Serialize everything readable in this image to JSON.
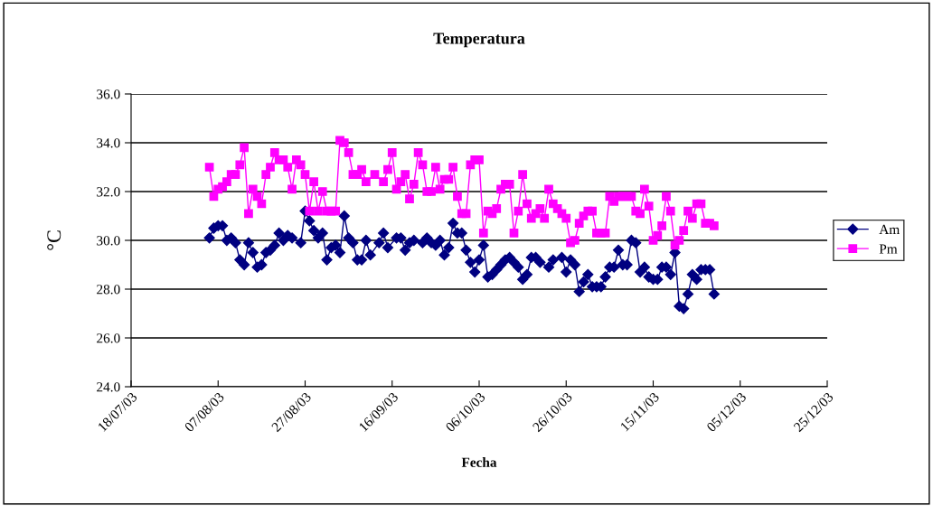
{
  "chart_data": {
    "type": "line",
    "title": "Temperatura",
    "xlabel": "Fecha",
    "ylabel": "°C",
    "xlim": [
      "2003-07-18",
      "2003-12-25"
    ],
    "xticks": [
      {
        "value": "2003-07-18",
        "label": "18/07/03"
      },
      {
        "value": "2003-08-07",
        "label": "07/08/03"
      },
      {
        "value": "2003-08-27",
        "label": "27/08/03"
      },
      {
        "value": "2003-09-16",
        "label": "16/09/03"
      },
      {
        "value": "2003-10-06",
        "label": "06/10/03"
      },
      {
        "value": "2003-10-26",
        "label": "26/10/03"
      },
      {
        "value": "2003-11-15",
        "label": "15/11/03"
      },
      {
        "value": "2003-12-05",
        "label": "05/12/03"
      },
      {
        "value": "2003-12-25",
        "label": "25/12/03"
      }
    ],
    "ylim": [
      24,
      36
    ],
    "yticks": [
      {
        "value": 24,
        "label": "24.0"
      },
      {
        "value": 26,
        "label": "26.0"
      },
      {
        "value": 28,
        "label": "28.0"
      },
      {
        "value": 30,
        "label": "30.0"
      },
      {
        "value": 32,
        "label": "32.0"
      },
      {
        "value": 34,
        "label": "34.0"
      },
      {
        "value": 36,
        "label": "36.0"
      }
    ],
    "grid": "y",
    "legend": "right",
    "series": [
      {
        "name": "Am",
        "color": "#000080",
        "marker": "diamond",
        "x": [
          "2003-08-05",
          "2003-08-06",
          "2003-08-07",
          "2003-08-08",
          "2003-08-09",
          "2003-08-10",
          "2003-08-11",
          "2003-08-12",
          "2003-08-13",
          "2003-08-14",
          "2003-08-15",
          "2003-08-16",
          "2003-08-17",
          "2003-08-18",
          "2003-08-19",
          "2003-08-20",
          "2003-08-21",
          "2003-08-22",
          "2003-08-23",
          "2003-08-24",
          "2003-08-26",
          "2003-08-27",
          "2003-08-28",
          "2003-08-29",
          "2003-08-30",
          "2003-08-31",
          "2003-09-01",
          "2003-09-02",
          "2003-09-03",
          "2003-09-04",
          "2003-09-05",
          "2003-09-06",
          "2003-09-07",
          "2003-09-08",
          "2003-09-09",
          "2003-09-10",
          "2003-09-11",
          "2003-09-13",
          "2003-09-14",
          "2003-09-15",
          "2003-09-17",
          "2003-09-18",
          "2003-09-19",
          "2003-09-20",
          "2003-09-21",
          "2003-09-23",
          "2003-09-24",
          "2003-09-25",
          "2003-09-26",
          "2003-09-27",
          "2003-09-28",
          "2003-09-29",
          "2003-09-30",
          "2003-10-01",
          "2003-10-02",
          "2003-10-03",
          "2003-10-04",
          "2003-10-05",
          "2003-10-06",
          "2003-10-07",
          "2003-10-08",
          "2003-10-09",
          "2003-10-10",
          "2003-10-11",
          "2003-10-12",
          "2003-10-13",
          "2003-10-14",
          "2003-10-15",
          "2003-10-16",
          "2003-10-17",
          "2003-10-18",
          "2003-10-19",
          "2003-10-20",
          "2003-10-22",
          "2003-10-23",
          "2003-10-25",
          "2003-10-26",
          "2003-10-27",
          "2003-10-28",
          "2003-10-29",
          "2003-10-30",
          "2003-10-31",
          "2003-11-01",
          "2003-11-02",
          "2003-11-03",
          "2003-11-04",
          "2003-11-05",
          "2003-11-06",
          "2003-11-07",
          "2003-11-08",
          "2003-11-09",
          "2003-11-10",
          "2003-11-11",
          "2003-11-12",
          "2003-11-13",
          "2003-11-14",
          "2003-11-15",
          "2003-11-16",
          "2003-11-17",
          "2003-11-18",
          "2003-11-19",
          "2003-11-20",
          "2003-11-21",
          "2003-11-22",
          "2003-11-23",
          "2003-11-24",
          "2003-11-25",
          "2003-11-26",
          "2003-11-27",
          "2003-11-28",
          "2003-11-29"
        ],
        "values": [
          30.1,
          30.5,
          30.6,
          30.6,
          30.0,
          30.1,
          29.9,
          29.2,
          29.0,
          29.9,
          29.5,
          28.9,
          29.0,
          29.5,
          29.6,
          29.8,
          30.3,
          30.0,
          30.2,
          30.1,
          29.9,
          31.2,
          30.8,
          30.4,
          30.1,
          30.3,
          29.2,
          29.7,
          29.8,
          29.5,
          31.0,
          30.1,
          29.9,
          29.2,
          29.2,
          30.0,
          29.4,
          29.9,
          30.3,
          29.7,
          30.1,
          30.1,
          29.6,
          29.9,
          30.0,
          29.9,
          30.1,
          29.9,
          29.8,
          30.0,
          29.4,
          29.7,
          30.7,
          30.3,
          30.3,
          29.6,
          29.1,
          28.7,
          29.2,
          29.8,
          28.5,
          28.6,
          28.8,
          29.0,
          29.2,
          29.3,
          29.1,
          28.9,
          28.4,
          28.6,
          29.3,
          29.3,
          29.1,
          28.9,
          29.2,
          29.3,
          28.7,
          29.2,
          29.0,
          27.9,
          28.3,
          28.6,
          28.1,
          28.1,
          28.1,
          28.5,
          28.9,
          28.9,
          29.6,
          29.0,
          29.0,
          30.0,
          29.9,
          28.7,
          28.9,
          28.5,
          28.4,
          28.4,
          28.9,
          28.9,
          28.6,
          29.5,
          27.3,
          27.2,
          27.8,
          28.6,
          28.4,
          28.8,
          28.8,
          28.8,
          27.8
        ]
      },
      {
        "name": "Pm",
        "color": "#ff00ff",
        "marker": "square",
        "x": [
          "2003-08-05",
          "2003-08-06",
          "2003-08-07",
          "2003-08-08",
          "2003-08-09",
          "2003-08-10",
          "2003-08-11",
          "2003-08-12",
          "2003-08-13",
          "2003-08-14",
          "2003-08-15",
          "2003-08-16",
          "2003-08-17",
          "2003-08-18",
          "2003-08-19",
          "2003-08-20",
          "2003-08-21",
          "2003-08-22",
          "2003-08-23",
          "2003-08-24",
          "2003-08-25",
          "2003-08-26",
          "2003-08-27",
          "2003-08-28",
          "2003-08-29",
          "2003-08-30",
          "2003-08-31",
          "2003-09-01",
          "2003-09-02",
          "2003-09-03",
          "2003-09-04",
          "2003-09-05",
          "2003-09-06",
          "2003-09-07",
          "2003-09-08",
          "2003-09-09",
          "2003-09-10",
          "2003-09-12",
          "2003-09-14",
          "2003-09-15",
          "2003-09-16",
          "2003-09-17",
          "2003-09-18",
          "2003-09-19",
          "2003-09-20",
          "2003-09-21",
          "2003-09-22",
          "2003-09-23",
          "2003-09-24",
          "2003-09-25",
          "2003-09-26",
          "2003-09-27",
          "2003-09-28",
          "2003-09-29",
          "2003-09-30",
          "2003-10-01",
          "2003-10-02",
          "2003-10-03",
          "2003-10-04",
          "2003-10-05",
          "2003-10-06",
          "2003-10-07",
          "2003-10-08",
          "2003-10-09",
          "2003-10-10",
          "2003-10-11",
          "2003-10-12",
          "2003-10-13",
          "2003-10-14",
          "2003-10-15",
          "2003-10-16",
          "2003-10-17",
          "2003-10-18",
          "2003-10-19",
          "2003-10-20",
          "2003-10-21",
          "2003-10-22",
          "2003-10-23",
          "2003-10-24",
          "2003-10-25",
          "2003-10-26",
          "2003-10-27",
          "2003-10-28",
          "2003-10-29",
          "2003-10-30",
          "2003-10-31",
          "2003-11-01",
          "2003-11-02",
          "2003-11-03",
          "2003-11-04",
          "2003-11-05",
          "2003-11-06",
          "2003-11-07",
          "2003-11-08",
          "2003-11-09",
          "2003-11-10",
          "2003-11-11",
          "2003-11-12",
          "2003-11-13",
          "2003-11-14",
          "2003-11-15",
          "2003-11-16",
          "2003-11-17",
          "2003-11-18",
          "2003-11-19",
          "2003-11-20",
          "2003-11-21",
          "2003-11-22",
          "2003-11-23",
          "2003-11-24",
          "2003-11-25",
          "2003-11-26",
          "2003-11-27",
          "2003-11-28",
          "2003-11-29"
        ],
        "values": [
          33.0,
          31.8,
          32.1,
          32.2,
          32.4,
          32.7,
          32.7,
          33.1,
          33.8,
          31.1,
          32.1,
          31.8,
          31.5,
          32.7,
          33.0,
          33.6,
          33.3,
          33.3,
          33.0,
          32.1,
          33.3,
          33.1,
          32.7,
          31.2,
          32.4,
          31.2,
          32.0,
          31.2,
          31.2,
          31.2,
          34.1,
          34.0,
          33.6,
          32.7,
          32.7,
          32.9,
          32.4,
          32.7,
          32.4,
          32.9,
          33.6,
          32.1,
          32.4,
          32.7,
          31.7,
          32.3,
          33.6,
          33.1,
          32.0,
          32.0,
          33.0,
          32.1,
          32.5,
          32.5,
          33.0,
          31.8,
          31.1,
          31.1,
          33.1,
          33.3,
          33.3,
          30.3,
          31.2,
          31.1,
          31.3,
          32.1,
          32.3,
          32.3,
          30.3,
          31.2,
          32.7,
          31.5,
          30.9,
          31.1,
          31.3,
          30.9,
          32.1,
          31.5,
          31.3,
          31.1,
          30.9,
          29.9,
          30.0,
          30.7,
          31.0,
          31.2,
          31.2,
          30.3,
          30.3,
          30.3,
          31.8,
          31.6,
          31.8,
          31.8,
          31.8,
          31.8,
          31.2,
          31.1,
          32.1,
          31.4,
          30.0,
          30.2,
          30.6,
          31.8,
          31.2,
          29.8,
          30.0,
          30.4,
          31.2,
          30.9,
          31.5,
          31.5,
          30.7,
          30.7,
          30.6
        ]
      }
    ]
  }
}
